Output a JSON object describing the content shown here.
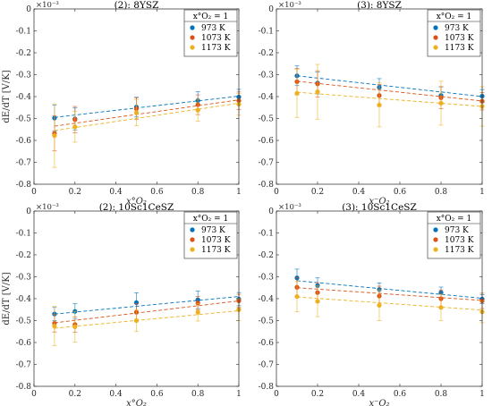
{
  "colors": {
    "s0": "#0072BD",
    "s1": "#D95319",
    "s2": "#EDB120"
  },
  "chart_data": [
    {
      "type": "scatter",
      "title": "(2): 8YSZ",
      "xlabel": "x°O₂",
      "ylabel": "dE/dT [V/K]",
      "y_exponent": "×10⁻³",
      "legend_title": "x°O₂ = 1",
      "xlim": [
        0,
        1
      ],
      "ylim": [
        -0.8,
        0
      ],
      "xticks": [
        "0",
        "0.2",
        "0.4",
        "0.6",
        "0.8",
        "1"
      ],
      "yticks": [
        "0",
        "-0.1",
        "-0.2",
        "-0.3",
        "-0.4",
        "-0.5",
        "-0.6",
        "-0.7",
        "-0.8"
      ],
      "x": [
        0.1,
        0.2,
        0.5,
        0.8,
        1.0
      ],
      "series": [
        {
          "name": "973 K",
          "values": [
            -0.498,
            -0.502,
            -0.448,
            -0.418,
            -0.402
          ],
          "err": [
            0.06,
            0.05,
            0.045,
            0.04,
            0.035
          ],
          "fit": [
            -0.495,
            -0.398
          ]
        },
        {
          "name": "1073 K",
          "values": [
            -0.568,
            -0.505,
            -0.455,
            -0.437,
            -0.419
          ],
          "err": [
            0.08,
            0.06,
            0.05,
            0.045,
            0.04
          ],
          "fit": [
            -0.535,
            -0.415
          ]
        },
        {
          "name": "1173 K",
          "values": [
            -0.578,
            -0.538,
            -0.473,
            -0.462,
            -0.435
          ],
          "err": [
            0.145,
            0.07,
            0.06,
            0.05,
            0.05
          ],
          "fit": [
            -0.555,
            -0.43
          ]
        }
      ]
    },
    {
      "type": "scatter",
      "title": "(3): 8YSZ",
      "xlabel": "x⁻O₂",
      "ylabel": "",
      "y_exponent": "×10⁻³",
      "legend_title": "x°O₂ = 1",
      "xlim": [
        0,
        1
      ],
      "ylim": [
        -0.8,
        0
      ],
      "xticks": [
        "0",
        "0.2",
        "0.4",
        "0.6",
        "0.8",
        "1"
      ],
      "yticks": [
        "0",
        "-0.1",
        "-0.2",
        "-0.3",
        "-0.4",
        "-0.5",
        "-0.6",
        "-0.7",
        "-0.8"
      ],
      "x": [
        0.1,
        0.2,
        0.5,
        0.8,
        1.0
      ],
      "series": [
        {
          "name": "973 K",
          "values": [
            -0.305,
            -0.338,
            -0.358,
            -0.395,
            -0.398
          ],
          "err": [
            0.045,
            0.05,
            0.04,
            0.04,
            0.03
          ],
          "fit": [
            -0.305,
            -0.4
          ]
        },
        {
          "name": "1073 K",
          "values": [
            -0.332,
            -0.342,
            -0.395,
            -0.405,
            -0.421
          ],
          "err": [
            0.06,
            0.06,
            0.05,
            0.05,
            0.04
          ],
          "fit": [
            -0.33,
            -0.42
          ]
        },
        {
          "name": "1173 K",
          "values": [
            -0.385,
            -0.378,
            -0.438,
            -0.43,
            -0.445
          ],
          "err": [
            0.11,
            0.125,
            0.1,
            0.1,
            0.09
          ],
          "fit": [
            -0.38,
            -0.445
          ]
        }
      ]
    },
    {
      "type": "scatter",
      "title": "(2): 10Sc1CeSZ",
      "xlabel": "x°O₂",
      "ylabel": "dE/dT [V/K]",
      "y_exponent": "×10⁻³",
      "legend_title": "x°O₂ = 1",
      "xlim": [
        0,
        1
      ],
      "ylim": [
        -0.8,
        0
      ],
      "xticks": [
        "0",
        "0.2",
        "0.4",
        "0.6",
        "0.8",
        "1"
      ],
      "yticks": [
        "0",
        "-0.1",
        "-0.2",
        "-0.3",
        "-0.4",
        "-0.5",
        "-0.6",
        "-0.7",
        "-0.8"
      ],
      "x": [
        0.1,
        0.2,
        0.5,
        0.8,
        1.0
      ],
      "series": [
        {
          "name": "973 K",
          "values": [
            -0.47,
            -0.458,
            -0.418,
            -0.405,
            -0.402
          ],
          "err": [
            0.03,
            0.035,
            0.045,
            0.04,
            0.03
          ],
          "fit": [
            -0.47,
            -0.39
          ]
        },
        {
          "name": "1073 K",
          "values": [
            -0.512,
            -0.518,
            -0.462,
            -0.42,
            -0.41
          ],
          "err": [
            0.04,
            0.035,
            0.04,
            0.03,
            0.03
          ],
          "fit": [
            -0.51,
            -0.41
          ]
        },
        {
          "name": "1173 K",
          "values": [
            -0.525,
            -0.528,
            -0.5,
            -0.462,
            -0.45
          ],
          "err": [
            0.09,
            0.07,
            0.05,
            0.04,
            0.05
          ],
          "fit": [
            -0.535,
            -0.455
          ]
        }
      ]
    },
    {
      "type": "scatter",
      "title": "(3): 10Sc1CeSZ",
      "xlabel": "x⁻O₂",
      "ylabel": "",
      "y_exponent": "×10⁻³",
      "legend_title": "x°O₂ = 1",
      "xlim": [
        0,
        1
      ],
      "ylim": [
        -0.8,
        0
      ],
      "xticks": [
        "0",
        "0.2",
        "0.4",
        "0.6",
        "0.8",
        "1"
      ],
      "yticks": [
        "0",
        "-0.1",
        "-0.2",
        "-0.3",
        "-0.4",
        "-0.5",
        "-0.6",
        "-0.7",
        "-0.8"
      ],
      "x": [
        0.1,
        0.2,
        0.5,
        0.8,
        1.0
      ],
      "series": [
        {
          "name": "973 K",
          "values": [
            -0.305,
            -0.34,
            -0.358,
            -0.372,
            -0.402
          ],
          "err": [
            0.04,
            0.035,
            0.03,
            0.025,
            0.02
          ],
          "fit": [
            -0.318,
            -0.398
          ]
        },
        {
          "name": "1073 K",
          "values": [
            -0.348,
            -0.372,
            -0.388,
            -0.4,
            -0.41
          ],
          "err": [
            0.045,
            0.045,
            0.045,
            0.04,
            0.035
          ],
          "fit": [
            -0.35,
            -0.408
          ]
        },
        {
          "name": "1173 K",
          "values": [
            -0.39,
            -0.412,
            -0.43,
            -0.44,
            -0.46
          ],
          "err": [
            0.07,
            0.07,
            0.07,
            0.06,
            0.05
          ],
          "fit": [
            -0.392,
            -0.452
          ]
        }
      ]
    }
  ]
}
